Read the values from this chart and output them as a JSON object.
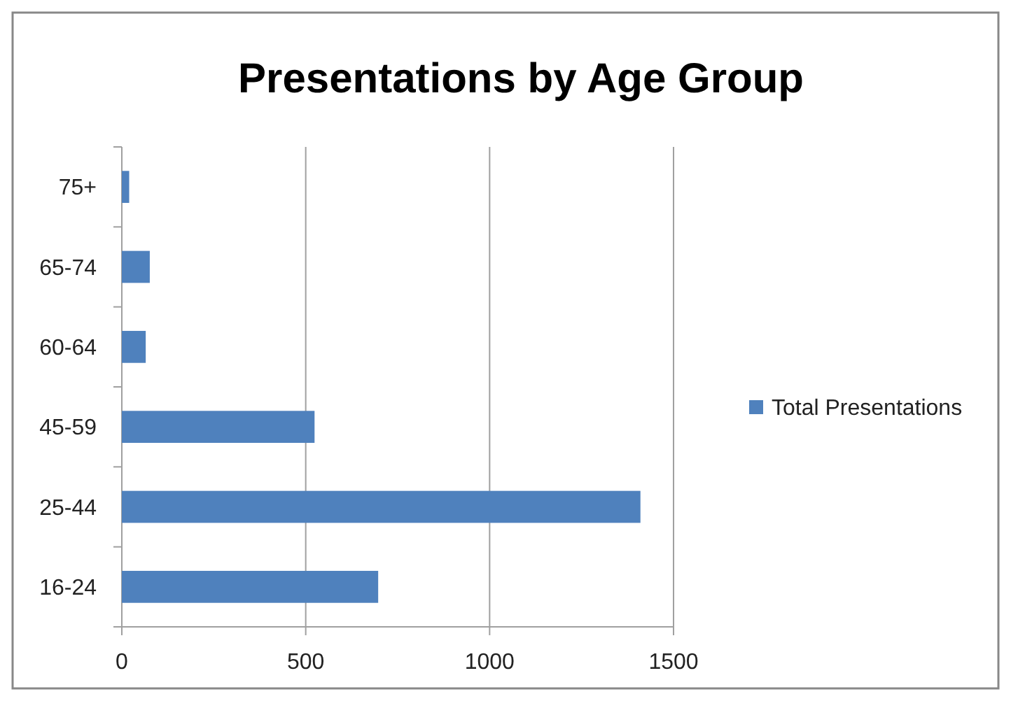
{
  "chart_data": {
    "type": "bar",
    "orientation": "horizontal",
    "title": "Presentations by Age Group",
    "categories": [
      "75+",
      "65-74",
      "60-64",
      "45-59",
      "25-44",
      "16-24"
    ],
    "series": [
      {
        "name": "Total Presentations",
        "color": "#4f81bd",
        "values": [
          20,
          76,
          65,
          524,
          1410,
          697
        ]
      }
    ],
    "xlim": [
      0,
      1500
    ],
    "xticks": [
      0,
      500,
      1000,
      1500
    ],
    "grid": "x",
    "legend": "right"
  }
}
